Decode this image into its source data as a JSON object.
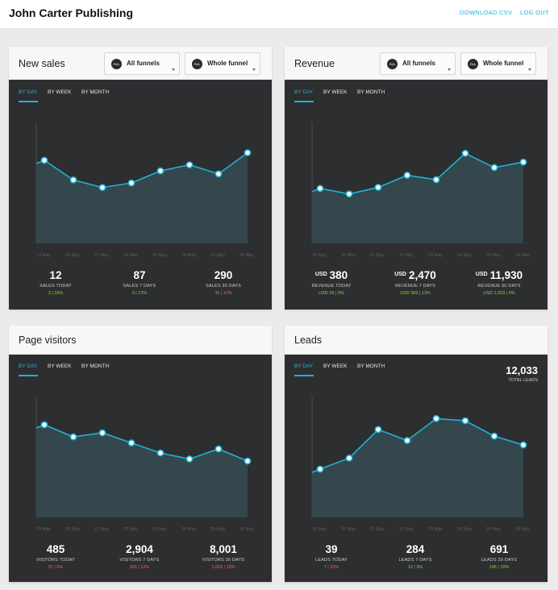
{
  "header": {
    "title": "John Carter Publishing",
    "download_csv": "DOWNLOAD CSV",
    "log_out": "LOG OUT"
  },
  "tabs": {
    "by_day": "BY DAY",
    "by_week": "BY WEEK",
    "by_month": "BY MONTH"
  },
  "dropdowns": {
    "badge": "ALL",
    "funnels": "All funnels",
    "funnel_scope": "Whole funnel"
  },
  "colors": {
    "accent": "#1fb3d6",
    "panel_bg": "#2d2e30",
    "up": "#8cd23a",
    "down": "#ff5d5d"
  },
  "panels": {
    "new_sales": {
      "title": "New sales",
      "x_labels": [
        "19 May",
        "20 May",
        "21 May",
        "22 May",
        "23 May",
        "24 May",
        "25 May",
        "26 May"
      ],
      "values": [
        13.5,
        12.2,
        11.7,
        12.0,
        12.8,
        13.2,
        12.6,
        14.0
      ],
      "y_range": [
        8,
        16
      ],
      "stats": [
        {
          "value": "12",
          "unit": "",
          "caption": "SALES TODAY",
          "change": "3 | 33%",
          "dir": "up"
        },
        {
          "value": "87",
          "unit": "",
          "caption": "SALES 7 DAYS",
          "change": "9 | 12%",
          "dir": "up"
        },
        {
          "value": "290",
          "unit": "",
          "caption": "SALES 30 DAYS",
          "change": "35 | 12%",
          "dir": "down"
        }
      ]
    },
    "revenue": {
      "title": "Revenue",
      "x_labels": [
        "19 May",
        "20 May",
        "21 May",
        "22 May",
        "23 May",
        "24 May",
        "25 May",
        "26 May"
      ],
      "values": [
        300,
        250,
        310,
        420,
        380,
        620,
        490,
        540
      ],
      "y_range": [
        -200,
        900
      ],
      "stats": [
        {
          "value": "380",
          "unit": "USD",
          "caption": "REVENUE TODAY",
          "change": "USD 26 | 9%",
          "dir": "up"
        },
        {
          "value": "2,470",
          "unit": "USD",
          "caption": "REVENUE 7 DAYS",
          "change": "USD 389 | 13%",
          "dir": "up"
        },
        {
          "value": "11,930",
          "unit": "USD",
          "caption": "REVENUE 30 DAYS",
          "change": "USD 1,003 | 9%",
          "dir": "up"
        }
      ]
    },
    "page_visitors": {
      "title": "Page visitors",
      "x_labels": [
        "19 May",
        "20 May",
        "21 May",
        "22 May",
        "23 May",
        "24 May",
        "25 May",
        "26 May"
      ],
      "values": [
        560,
        500,
        520,
        470,
        420,
        390,
        440,
        380
      ],
      "y_range": [
        100,
        700
      ],
      "stats": [
        {
          "value": "485",
          "unit": "",
          "caption": "VISITORS TODAY",
          "change": "37 | 6%",
          "dir": "down"
        },
        {
          "value": "2,904",
          "unit": "",
          "caption": "VISITORS 7 DAYS",
          "change": "365 | 13%",
          "dir": "down"
        },
        {
          "value": "8,001",
          "unit": "",
          "caption": "VISITORS 30 DAYS",
          "change": "1,603 | 18%",
          "dir": "down"
        }
      ]
    },
    "leads": {
      "title": "Leads",
      "x_labels": [
        "19 May",
        "20 May",
        "21 May",
        "22 May",
        "23 May",
        "24 May",
        "25 May",
        "26 May"
      ],
      "values": [
        22,
        27,
        40,
        35,
        45,
        44,
        37,
        33
      ],
      "y_range": [
        0,
        55
      ],
      "total": {
        "value": "12,033",
        "caption": "TOTAL LEADS"
      },
      "stats": [
        {
          "value": "39",
          "unit": "",
          "caption": "LEADS TODAY",
          "change": "7 | 20%",
          "dir": "down"
        },
        {
          "value": "284",
          "unit": "",
          "caption": "LEADS 7 DAYS",
          "change": "12 | 3%",
          "dir": "up"
        },
        {
          "value": "691",
          "unit": "",
          "caption": "LEADS 30 DAYS",
          "change": "146 | 16%",
          "dir": "up"
        }
      ]
    }
  }
}
